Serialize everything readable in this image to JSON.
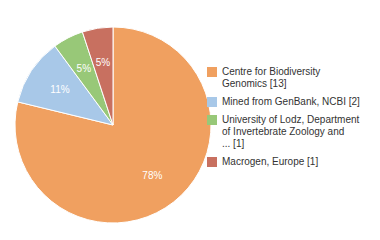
{
  "chart_data": {
    "type": "pie",
    "categories": [
      "Centre for Biodiversity\nGenomics [13]",
      "Mined from GenBank, NCBI [2]",
      "University of Lodz, Department\nof Invertebrate Zoology and\n... [1]",
      "Macrogen, Europe [1]"
    ],
    "values": [
      78,
      11,
      5,
      5
    ],
    "value_labels": [
      "78%",
      "11%",
      "5%",
      "5%"
    ],
    "colors": [
      "#f0a060",
      "#a8c8e8",
      "#98c878",
      "#c87060"
    ],
    "data_labels": true,
    "legend": "right"
  }
}
